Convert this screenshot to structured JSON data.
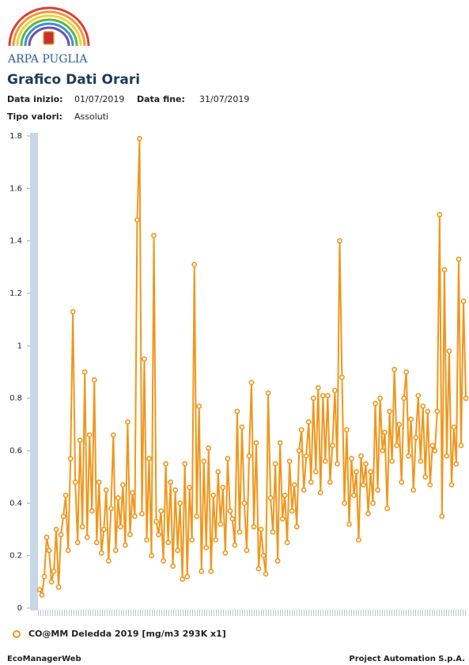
{
  "header": {
    "logo_text": "ARPA PUGLIA",
    "title": "Grafico Dati Orari"
  },
  "filters": {
    "start_label": "Data inizio:",
    "start": "01/07/2019",
    "end_label": "Data fine:",
    "end": "31/07/2019",
    "type_label": "Tipo valori:",
    "type": "Assoluti"
  },
  "chart_data": {
    "type": "line",
    "series": [
      {
        "name": "CO@MM Deledda 2019 [mg/m3 293K x1]",
        "color": "#f0961b",
        "values": [
          0.07,
          0.05,
          0.12,
          0.27,
          0.22,
          0.1,
          0.14,
          0.3,
          0.08,
          0.28,
          0.35,
          0.43,
          0.22,
          0.57,
          1.13,
          0.48,
          0.25,
          0.64,
          0.31,
          0.9,
          0.27,
          0.66,
          0.37,
          0.87,
          0.25,
          0.48,
          0.21,
          0.3,
          0.45,
          0.18,
          0.38,
          0.66,
          0.22,
          0.42,
          0.31,
          0.47,
          0.24,
          0.71,
          0.28,
          0.44,
          0.35,
          1.48,
          1.79,
          0.36,
          0.95,
          0.26,
          0.57,
          0.2,
          1.42,
          0.33,
          0.28,
          0.37,
          0.18,
          0.55,
          0.25,
          0.48,
          0.16,
          0.45,
          0.22,
          0.4,
          0.11,
          0.55,
          0.12,
          0.46,
          0.26,
          1.31,
          0.35,
          0.77,
          0.14,
          0.56,
          0.23,
          0.61,
          0.14,
          0.43,
          0.26,
          0.52,
          0.32,
          0.46,
          0.21,
          0.57,
          0.37,
          0.34,
          0.24,
          0.75,
          0.29,
          0.69,
          0.4,
          0.22,
          0.58,
          0.86,
          0.31,
          0.63,
          0.15,
          0.3,
          0.2,
          0.13,
          0.82,
          0.42,
          0.29,
          0.55,
          0.18,
          0.63,
          0.34,
          0.43,
          0.25,
          0.56,
          0.37,
          0.47,
          0.31,
          0.6,
          0.68,
          0.45,
          0.58,
          0.71,
          0.48,
          0.8,
          0.52,
          0.84,
          0.44,
          0.81,
          0.56,
          0.81,
          0.48,
          0.62,
          0.83,
          0.55,
          1.4,
          0.88,
          0.4,
          0.68,
          0.32,
          0.57,
          0.43,
          0.52,
          0.26,
          0.58,
          0.47,
          0.55,
          0.36,
          0.52,
          0.4,
          0.78,
          0.45,
          0.8,
          0.6,
          0.67,
          0.38,
          0.75,
          0.56,
          0.91,
          0.62,
          0.7,
          0.48,
          0.8,
          0.9,
          0.58,
          0.72,
          0.45,
          0.65,
          0.81,
          0.56,
          0.77,
          0.5,
          0.75,
          0.47,
          0.62,
          0.6,
          0.75,
          1.5,
          0.35,
          1.29,
          0.58,
          0.98,
          0.47,
          0.69,
          0.55,
          1.33,
          0.62,
          1.17,
          0.8
        ]
      }
    ],
    "ylim": [
      0,
      1.8
    ],
    "yticks": [
      0,
      0.2,
      0.4,
      0.6,
      0.8,
      1,
      1.2,
      1.4,
      1.6,
      1.8
    ],
    "grid": false
  },
  "footer": {
    "left": "EcoManagerWeb",
    "right": "Project Automation S.p.A."
  }
}
